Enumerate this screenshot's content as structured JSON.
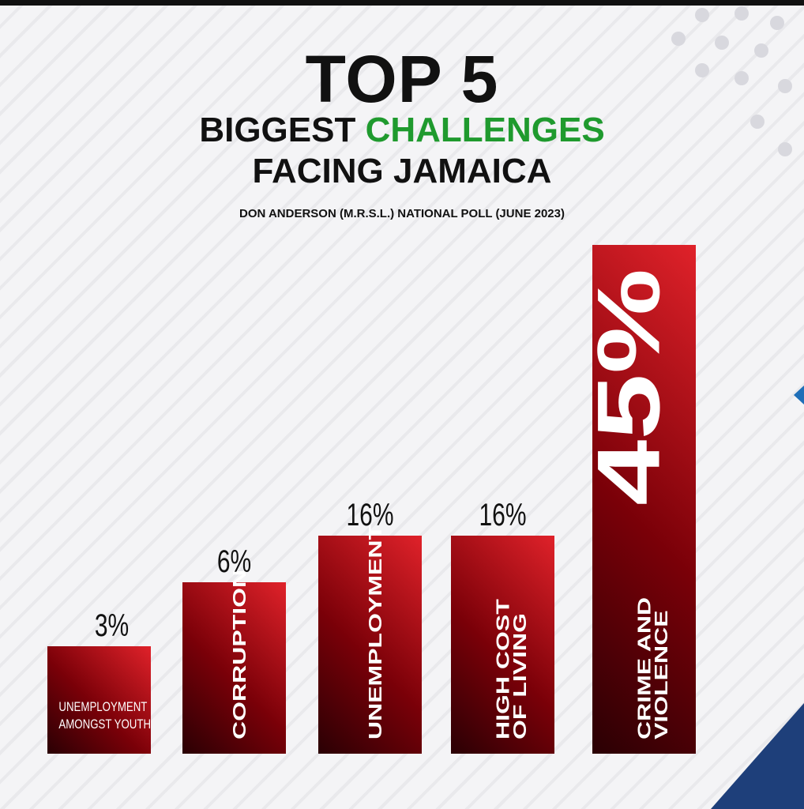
{
  "chart_data": {
    "type": "bar",
    "title_line1": "TOP 5",
    "title_line2_a": "BIGGEST ",
    "title_line2_b": "CHALLENGES",
    "title_line3": "FACING JAMAICA",
    "subtitle": "DON ANDERSON (M.R.S.L.) NATIONAL POLL (JUNE 2023)",
    "categories": [
      "UNEMPLOYMENT\nAMONGST YOUTH",
      "CORRUPTION",
      "UNEMPLOYMENT",
      "HIGH COST\nOF LIVING",
      "CRIME AND\nVIOLENCE"
    ],
    "values": [
      3,
      6,
      16,
      16,
      45
    ],
    "value_labels": [
      "3%",
      "6%",
      "16%",
      "16%",
      "45%"
    ],
    "unit": "%",
    "grid": false,
    "colors": {
      "bar": "#d8222a",
      "bar_dark": "#2a0004",
      "accent_green": "#1f9a2e",
      "blue": "#1e3f7a"
    }
  }
}
